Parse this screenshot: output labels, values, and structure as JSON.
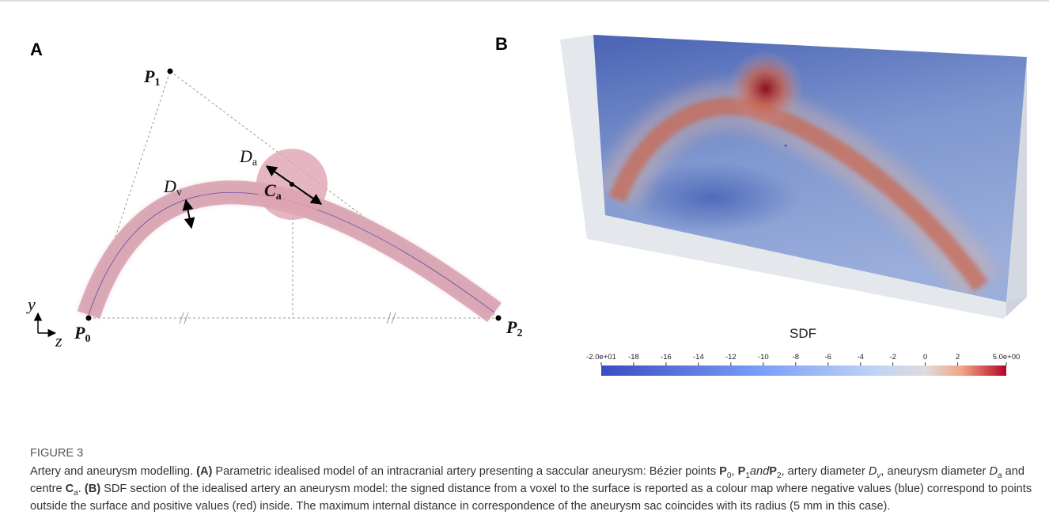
{
  "panels": {
    "a": "A",
    "b": "B"
  },
  "diagram": {
    "labels": [
      {
        "text": "P",
        "sub": "1"
      },
      {
        "text": "D",
        "sub": "a"
      },
      {
        "text": "C",
        "sub": "a"
      },
      {
        "text": "D",
        "sub": "v"
      },
      {
        "text": "y"
      },
      {
        "text": "z"
      },
      {
        "text": "P",
        "sub": "0"
      },
      {
        "text": "P",
        "sub": "2"
      }
    ]
  },
  "colorbar": {
    "title": "SDF",
    "range": [
      -20,
      5
    ],
    "ticks": [
      {
        "value": -20,
        "label": "-2.0e+01"
      },
      -18,
      -16,
      -14,
      -12,
      -10,
      -8,
      -6,
      -4,
      -2,
      0,
      2,
      {
        "value": 5,
        "label": "5.0e+00"
      }
    ]
  },
  "caption": {
    "label": "FIGURE 3",
    "runs": [
      {
        "text": "Artery and aneurysm modelling. ",
        "style": ""
      },
      {
        "text": "(A)",
        "style": "b"
      },
      {
        "text": " Parametric idealised model of an intracranial artery presenting a saccular aneurysm: Bézier points ",
        "style": ""
      },
      {
        "text": "P",
        "style": "b"
      },
      {
        "text": "0",
        "style": "sub"
      },
      {
        "text": ", ",
        "style": ""
      },
      {
        "text": "P",
        "style": "b"
      },
      {
        "text": "1",
        "style": "sub"
      },
      {
        "text": "and",
        "style": "i"
      },
      {
        "text": "P",
        "style": "b"
      },
      {
        "text": "2",
        "style": "sub"
      },
      {
        "text": ", artery diameter ",
        "style": ""
      },
      {
        "text": "D",
        "style": "i"
      },
      {
        "text": "v",
        "style": "isub"
      },
      {
        "text": ", aneurysm diameter ",
        "style": ""
      },
      {
        "text": "D",
        "style": "i"
      },
      {
        "text": "a",
        "style": "isub"
      },
      {
        "text": " and centre ",
        "style": ""
      },
      {
        "text": "C",
        "style": "b"
      },
      {
        "text": "a",
        "style": "isub"
      },
      {
        "text": ". ",
        "style": ""
      },
      {
        "text": "(B)",
        "style": "b"
      },
      {
        "text": " SDF section of the idealised artery an aneurysm model: the signed distance from a voxel to the surface is reported as a colour map where negative values (blue) correspond to points outside the surface and positive values (red) inside. The maximum internal distance in correspondence of the aneurysm sac coincides with its radius (5 mm in this case).",
        "style": ""
      }
    ]
  }
}
